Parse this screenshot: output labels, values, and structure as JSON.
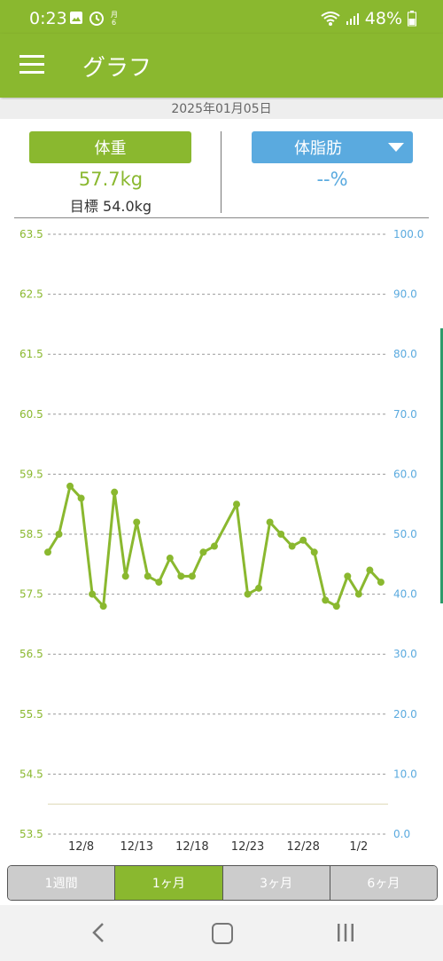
{
  "status": {
    "time": "0:23",
    "battery": "48%",
    "icons_left": [
      "gallery-icon",
      "alarm-icon",
      "calendar-icon"
    ],
    "icons_right": [
      "wifi-icon",
      "signal-icon",
      "battery-icon"
    ]
  },
  "appbar": {
    "title": "グラフ",
    "menu_icon": "hamburger-menu-icon"
  },
  "date": "2025年01月05日",
  "weight_panel": {
    "button_label": "体重",
    "value": "57.7kg",
    "goal": "目標 54.0kg"
  },
  "fat_panel": {
    "button_label": "体脂肪",
    "value": "--%"
  },
  "tabs": [
    {
      "label": "1週間",
      "active": false
    },
    {
      "label": "1ヶ月",
      "active": true
    },
    {
      "label": "3ヶ月",
      "active": false
    },
    {
      "label": "6ヶ月",
      "active": false
    }
  ],
  "nav": {
    "back": "back-icon",
    "home": "home-icon",
    "recent": "recent-apps-icon"
  },
  "colors": {
    "accent": "#8ab82f",
    "blue": "#5aaadf"
  },
  "chart_data": {
    "type": "line",
    "title": "",
    "xlabel": "",
    "ylabel": "",
    "x_tick_labels": [
      "12/8",
      "12/13",
      "12/18",
      "12/23",
      "12/28",
      "1/2"
    ],
    "y_left": {
      "ylim": [
        53.5,
        63.5
      ],
      "ticks": [
        "53.5",
        "54.5",
        "55.5",
        "56.5",
        "57.5",
        "58.5",
        "59.5",
        "60.5",
        "61.5",
        "62.5",
        "63.5"
      ]
    },
    "y_right": {
      "ylim": [
        0,
        100
      ],
      "ticks": [
        "0.0",
        "10.0",
        "20.0",
        "30.0",
        "40.0",
        "50.0",
        "60.0",
        "70.0",
        "80.0",
        "90.0",
        "100.0"
      ]
    },
    "grid": true,
    "goal_line": 54.0,
    "series": [
      {
        "values": [
          {
            "x": "12/5",
            "y": 58.2
          },
          {
            "x": "12/6",
            "y": 58.5
          },
          {
            "x": "12/7",
            "y": 59.3
          },
          {
            "x": "12/8",
            "y": 59.1
          },
          {
            "x": "12/9",
            "y": 57.5
          },
          {
            "x": "12/10",
            "y": 57.3
          },
          {
            "x": "12/11",
            "y": 59.2
          },
          {
            "x": "12/12",
            "y": 57.8
          },
          {
            "x": "12/13",
            "y": 58.7
          },
          {
            "x": "12/14",
            "y": 57.8
          },
          {
            "x": "12/15",
            "y": 57.7
          },
          {
            "x": "12/16",
            "y": 58.1
          },
          {
            "x": "12/17",
            "y": 57.8
          },
          {
            "x": "12/18",
            "y": 57.8
          },
          {
            "x": "12/19",
            "y": 58.2
          },
          {
            "x": "12/20",
            "y": 58.3
          },
          {
            "x": "12/22",
            "y": 59.0
          },
          {
            "x": "12/23",
            "y": 57.5
          },
          {
            "x": "12/24",
            "y": 57.6
          },
          {
            "x": "12/25",
            "y": 58.7
          },
          {
            "x": "12/26",
            "y": 58.5
          },
          {
            "x": "12/27",
            "y": 58.3
          },
          {
            "x": "12/28",
            "y": 58.4
          },
          {
            "x": "12/29",
            "y": 58.2
          },
          {
            "x": "12/30",
            "y": 57.4
          },
          {
            "x": "12/31",
            "y": 57.3
          },
          {
            "x": "1/1",
            "y": 57.8
          },
          {
            "x": "1/2",
            "y": 57.5
          },
          {
            "x": "1/3",
            "y": 57.9
          },
          {
            "x": "1/4",
            "y": 57.7
          }
        ]
      }
    ]
  }
}
